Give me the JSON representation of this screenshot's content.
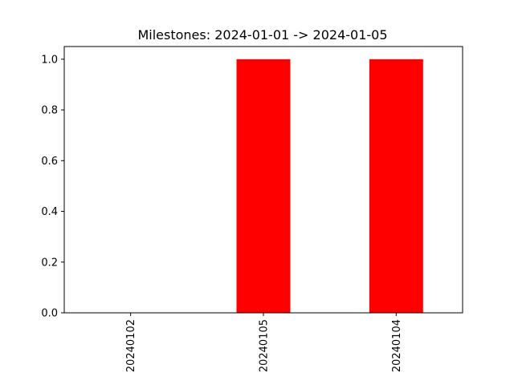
{
  "chart_data": {
    "type": "bar",
    "title": "Milestones: 2024-01-01 -> 2024-01-05",
    "xlabel": "",
    "ylabel": "",
    "categories": [
      "20240102",
      "20240105",
      "20240104"
    ],
    "values": [
      0,
      1,
      1
    ],
    "ylim": [
      0,
      1.05
    ],
    "yticks": [
      "0.0",
      "0.2",
      "0.4",
      "0.6",
      "0.8",
      "1.0"
    ],
    "ytick_values": [
      0,
      0.2,
      0.4,
      0.6,
      0.8,
      1.0
    ],
    "grid": false,
    "legend": "none",
    "bar_color": "#ff0000",
    "x_tick_rotation": "vertical"
  }
}
